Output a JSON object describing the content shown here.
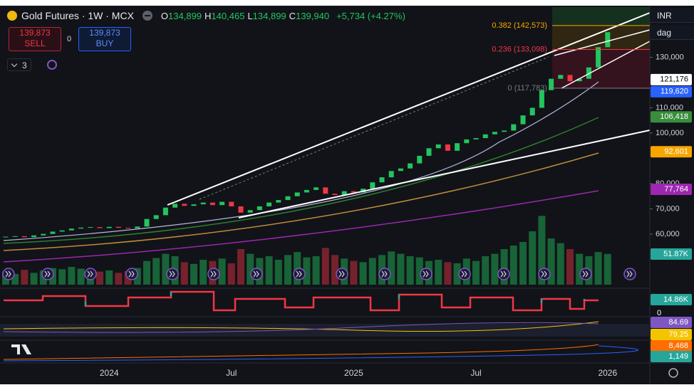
{
  "header": {
    "title": "Gold Futures · 1W · MCX",
    "ohlc": [
      {
        "key": "O",
        "value": "134,899"
      },
      {
        "key": "H",
        "value": "140,465"
      },
      {
        "key": "L",
        "value": "134,899"
      },
      {
        "key": "C",
        "value": "139,940"
      }
    ],
    "change": "+5,734 (+4.27%)"
  },
  "trade_panel": {
    "sell_price": "139,873",
    "sell_label": "SELL",
    "spread": "0",
    "buy_price": "139,873",
    "buy_label": "BUY"
  },
  "layers_count": "3",
  "currency": "INR",
  "scale_mode": "dag",
  "chart_data": {
    "type": "candlestick",
    "categories": [
      null,
      null,
      null,
      null,
      null,
      null,
      null,
      null,
      null,
      null,
      null,
      "2024",
      null,
      null,
      null,
      null,
      null,
      null,
      null,
      null,
      null,
      null,
      null,
      null,
      "Jul",
      null,
      null,
      null,
      null,
      null,
      null,
      null,
      null,
      null,
      null,
      null,
      null,
      "2025",
      null,
      null,
      null,
      null,
      null,
      null,
      null,
      null,
      null,
      null,
      null,
      null,
      "Jul",
      null,
      null,
      null,
      null,
      null,
      null,
      null,
      null,
      null,
      null,
      null,
      null,
      null,
      "2026"
    ],
    "values": [
      59000,
      59200,
      58800,
      59500,
      60100,
      61000,
      61500,
      62200,
      62600,
      62800,
      62400,
      62900,
      62500,
      62300,
      63000,
      66000,
      67500,
      70500,
      72000,
      71200,
      71800,
      72500,
      71500,
      72800,
      71000,
      68500,
      69500,
      71000,
      72500,
      73500,
      75000,
      76500,
      77500,
      78500,
      76000,
      75500,
      77000,
      76500,
      78000,
      80500,
      82500,
      85000,
      86000,
      88000,
      91000,
      94000,
      95500,
      93000,
      96000,
      97500,
      98000,
      99500,
      100500,
      101000,
      103500,
      107000,
      110000,
      117000,
      121500,
      123000,
      120500,
      121500,
      126000,
      134000,
      139940
    ],
    "volume": [
      22000,
      18000,
      25000,
      20000,
      24000,
      28000,
      26000,
      30000,
      27000,
      25000,
      22000,
      24000,
      20000,
      23000,
      28000,
      40000,
      45000,
      52000,
      48000,
      38000,
      35000,
      42000,
      40000,
      44000,
      36000,
      60000,
      52000,
      45000,
      48000,
      42000,
      50000,
      55000,
      46000,
      48000,
      62000,
      50000,
      44000,
      40000,
      38000,
      45000,
      50000,
      56000,
      52000,
      48000,
      46000,
      40000,
      42000,
      38000,
      36000,
      44000,
      40000,
      48000,
      52000,
      60000,
      66000,
      72000,
      90000,
      116000,
      78000,
      70000,
      60000,
      52000,
      48000,
      55000,
      51870
    ],
    "volume_ylim": [
      0,
      120000
    ],
    "up_color": "#22c55e",
    "down_color": "#f23645",
    "ylim": [
      40000,
      150000
    ],
    "yticks": [
      {
        "value": 130000,
        "label": "130,000"
      },
      {
        "value": 110000,
        "label": "110,000"
      },
      {
        "value": 100000,
        "label": "100,000"
      },
      {
        "value": 80000,
        "label": "80,000"
      },
      {
        "value": 70000,
        "label": "70,000"
      },
      {
        "value": 60000,
        "label": "60,000"
      }
    ],
    "price_badges": [
      {
        "value": 121176,
        "label": "121,176",
        "color": "#ffffff"
      },
      {
        "value": 119620,
        "label": "119,620",
        "color": "#2962ff"
      },
      {
        "value": 106418,
        "label": "106,418",
        "color": "#388e3c"
      },
      {
        "value": 92601,
        "label": "92,601",
        "color": "#f7a600"
      },
      {
        "value": 77764,
        "label": "77,764",
        "color": "#9c27b0"
      }
    ],
    "fib_levels": [
      {
        "value": 142573,
        "label": "0.382 (142,573)",
        "color": "#f7a600"
      },
      {
        "value": 133098,
        "label": "0.236 (133,098)",
        "color": "#f23645"
      },
      {
        "value": 117783,
        "label": "0 (117,783)",
        "color": "#787b86"
      }
    ],
    "indicator_badges": [
      {
        "label": "51.87K",
        "color": "#26a69a"
      },
      {
        "label": "14.86K",
        "color": "#26a69a"
      },
      {
        "label": "0"
      },
      {
        "label": "84.69",
        "color": "#7e57c2"
      },
      {
        "label": "79.25",
        "color": "#f5c400"
      },
      {
        "label": "8,468",
        "color": "#ff6d00"
      },
      {
        "label": "1,149",
        "color": "#26a69a"
      }
    ]
  }
}
